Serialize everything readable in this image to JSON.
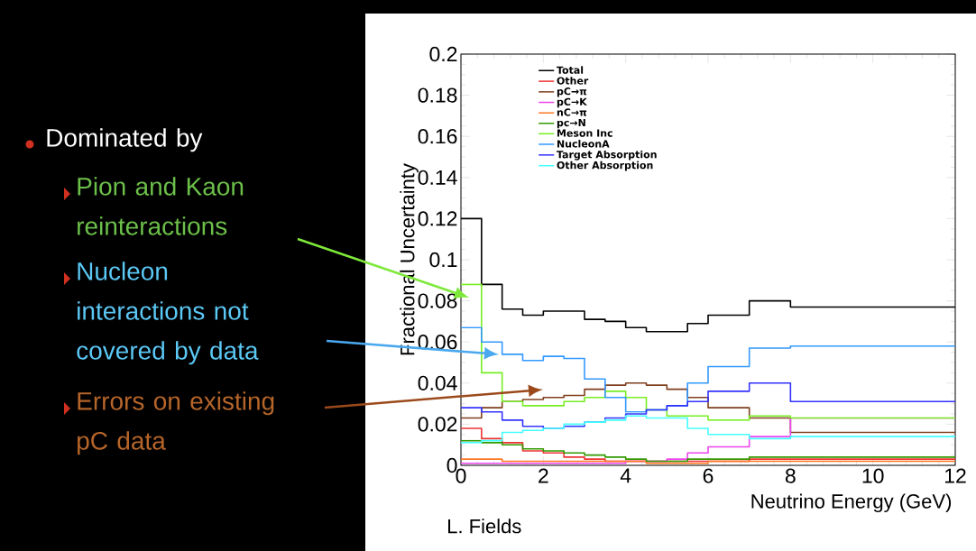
{
  "chart_data": {
    "type": "histogram",
    "xlabel": "Neutrino Energy (GeV)",
    "ylabel": "Fractional Uncertainty",
    "bins": [
      0,
      0.5,
      1,
      1.5,
      2,
      2.5,
      3,
      3.5,
      4,
      4.5,
      5,
      5.5,
      6,
      7,
      8,
      12
    ],
    "series": [
      {
        "name": "Total",
        "color": "#000000",
        "values": [
          0.12,
          0.088,
          0.076,
          0.073,
          0.075,
          0.075,
          0.071,
          0.07,
          0.067,
          0.065,
          0.065,
          0.069,
          0.073,
          0.08,
          0.077
        ]
      },
      {
        "name": "Other",
        "color": "#ee3333",
        "values": [
          0.018,
          0.013,
          0.011,
          0.007,
          0.006,
          0.004,
          0.003,
          0.002,
          0.002,
          0.002,
          0.002,
          0.002,
          0.002,
          0.003,
          0.003
        ]
      },
      {
        "name": "pC→π",
        "color": "#7f3f1f",
        "values": [
          0.023,
          0.028,
          0.031,
          0.032,
          0.033,
          0.034,
          0.037,
          0.039,
          0.04,
          0.039,
          0.037,
          0.033,
          0.028,
          0.023,
          0.016
        ]
      },
      {
        "name": "pC→K",
        "color": "#ee44ee",
        "values": [
          0.001,
          0.001,
          0.001,
          0.001,
          0.001,
          0.001,
          0.001,
          0.001,
          0.002,
          0.002,
          0.003,
          0.006,
          0.009,
          0.014,
          0.023
        ]
      },
      {
        "name": "nC→π",
        "color": "#ff7722",
        "values": [
          0.003,
          0.003,
          0.002,
          0.002,
          0.002,
          0.002,
          0.002,
          0.002,
          0.002,
          0.001,
          0.001,
          0.001,
          0.002,
          0.002,
          0.002
        ]
      },
      {
        "name": "pc→N",
        "color": "#339900",
        "values": [
          0.012,
          0.011,
          0.01,
          0.008,
          0.007,
          0.006,
          0.005,
          0.004,
          0.003,
          0.002,
          0.002,
          0.003,
          0.003,
          0.004,
          0.004
        ]
      },
      {
        "name": "Meson Inc",
        "color": "#77ee22",
        "values": [
          0.088,
          0.045,
          0.031,
          0.029,
          0.029,
          0.031,
          0.033,
          0.036,
          0.033,
          0.027,
          0.024,
          0.024,
          0.022,
          0.024,
          0.023
        ]
      },
      {
        "name": "NucleonA",
        "color": "#3399ff",
        "values": [
          0.067,
          0.06,
          0.054,
          0.051,
          0.053,
          0.052,
          0.042,
          0.033,
          0.026,
          0.027,
          0.029,
          0.04,
          0.048,
          0.057,
          0.058
        ]
      },
      {
        "name": "Target Absorption",
        "color": "#3333ff",
        "values": [
          0.028,
          0.026,
          0.022,
          0.019,
          0.018,
          0.019,
          0.021,
          0.023,
          0.025,
          0.027,
          0.029,
          0.031,
          0.036,
          0.04,
          0.031
        ]
      },
      {
        "name": "Other Absorption",
        "color": "#44ffff",
        "values": [
          0.011,
          0.012,
          0.016,
          0.017,
          0.018,
          0.02,
          0.021,
          0.022,
          0.024,
          0.023,
          0.023,
          0.018,
          0.015,
          0.013,
          0.014
        ]
      }
    ],
    "xlim": [
      0,
      12
    ],
    "ylim": [
      0,
      0.2
    ],
    "xticks": [
      0,
      2,
      4,
      6,
      8,
      10,
      12
    ],
    "yticks": [
      0,
      0.02,
      0.04,
      0.06,
      0.08,
      0.1,
      0.12,
      0.14,
      0.16,
      0.18,
      0.2
    ],
    "legend": "top",
    "annotations": [
      "Dominated by",
      "Pion and Kaon reinteractions",
      "Nucleon interactions not covered by data",
      "Errors on existing pC data",
      "L. Fields"
    ]
  }
}
